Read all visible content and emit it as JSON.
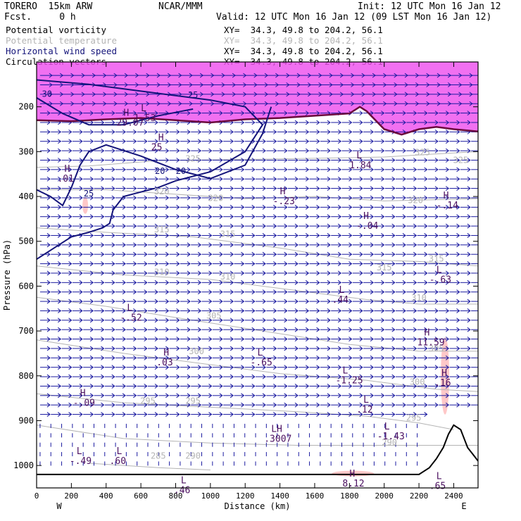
{
  "header": {
    "model": "TORERO  15km ARW",
    "center": "NCAR/MMM",
    "init": "Init: 12 UTC Mon 16 Jan 12",
    "fcst": "Fcst.     0 h",
    "valid": "Valid: 12 UTC Mon 16 Jan 12 (09 LST Mon 16 Jan 12)"
  },
  "fields": [
    {
      "label": "Potential vorticity",
      "xy": "XY=  34.3, 49.8 to 204.2, 56.1",
      "color": "#000000"
    },
    {
      "label": "Potential temperature",
      "xy": "XY=  34.3, 49.8 to 204.2, 56.1",
      "color": "#b4b4b4"
    },
    {
      "label": "Horizontal wind speed",
      "xy": "XY=  34.3, 49.8 to 204.2, 56.1",
      "color": "#14147a"
    },
    {
      "label": "Circulation vectors",
      "xy": "XY=  34.3, 49.8 to 204.2, 56.1",
      "color": "#000000"
    }
  ],
  "chart_data": {
    "type": "cross-section",
    "xlabel": "Distance (km)",
    "ylabel": "Pressure (hPa)",
    "xlim": [
      0,
      2540
    ],
    "ylim": [
      1050,
      100
    ],
    "x_ticks": [
      0,
      200,
      400,
      600,
      800,
      1000,
      1200,
      1400,
      1600,
      1800,
      2000,
      2200,
      2400
    ],
    "y_ticks": [
      200,
      300,
      400,
      500,
      600,
      700,
      800,
      900,
      1000
    ],
    "x_end_labels": {
      "left": "W",
      "right": "E"
    },
    "colors": {
      "pv_fill": "#e600e6",
      "pv_light": "#ffc8c8",
      "theta": "#b4b4b4",
      "wind": "#14147a",
      "vectors": "#1a1aa0",
      "terrain": "#000000"
    },
    "theta_contours": [
      {
        "value": 325,
        "pts": [
          [
            0,
            335
          ],
          [
            300,
            332
          ],
          [
            700,
            320
          ],
          [
            1100,
            318
          ],
          [
            1600,
            315
          ],
          [
            2000,
            312
          ],
          [
            2300,
            305
          ],
          [
            2540,
            300
          ]
        ],
        "labels": [
          [
            900,
            322
          ],
          [
            2220,
            308
          ],
          [
            2440,
            325
          ]
        ]
      },
      {
        "value": 320,
        "pts": [
          [
            0,
            385
          ],
          [
            400,
            385
          ],
          [
            800,
            395
          ],
          [
            1200,
            405
          ],
          [
            1600,
            400
          ],
          [
            2000,
            410
          ],
          [
            2540,
            405
          ]
        ],
        "labels": [
          [
            720,
            395
          ],
          [
            1030,
            410
          ],
          [
            2180,
            415
          ]
        ]
      },
      {
        "value": 315,
        "pts": [
          [
            0,
            470
          ],
          [
            400,
            480
          ],
          [
            900,
            490
          ],
          [
            1400,
            515
          ],
          [
            1800,
            540
          ],
          [
            2200,
            545
          ],
          [
            2540,
            555
          ]
        ],
        "labels": [
          [
            720,
            480
          ],
          [
            1100,
            490
          ],
          [
            2000,
            565
          ],
          [
            2300,
            545
          ]
        ]
      },
      {
        "value": 310,
        "pts": [
          [
            0,
            555
          ],
          [
            500,
            575
          ],
          [
            1000,
            585
          ],
          [
            1500,
            610
          ],
          [
            1900,
            630
          ],
          [
            2200,
            640
          ],
          [
            2540,
            640
          ]
        ],
        "labels": [
          [
            720,
            575
          ],
          [
            1100,
            585
          ],
          [
            2200,
            632
          ]
        ]
      },
      {
        "value": 305,
        "pts": [
          [
            0,
            625
          ],
          [
            400,
            645
          ],
          [
            800,
            670
          ],
          [
            1300,
            700
          ],
          [
            1800,
            730
          ],
          [
            2200,
            745
          ],
          [
            2540,
            745
          ]
        ],
        "labels": [
          [
            1020,
            672
          ],
          [
            2300,
            745
          ]
        ]
      },
      {
        "value": 300,
        "pts": [
          [
            0,
            720
          ],
          [
            500,
            750
          ],
          [
            900,
            770
          ],
          [
            1400,
            795
          ],
          [
            1900,
            810
          ],
          [
            2300,
            830
          ],
          [
            2540,
            835
          ]
        ],
        "labels": [
          [
            920,
            752
          ],
          [
            2190,
            820
          ]
        ]
      },
      {
        "value": 295,
        "pts": [
          [
            0,
            840
          ],
          [
            500,
            860
          ],
          [
            1000,
            870
          ],
          [
            1500,
            880
          ],
          [
            1900,
            890
          ],
          [
            2200,
            905
          ],
          [
            2400,
            920
          ]
        ],
        "labels": [
          [
            640,
            862
          ],
          [
            900,
            862
          ],
          [
            2170,
            900
          ]
        ]
      },
      {
        "value": 290,
        "pts": [
          [
            0,
            910
          ],
          [
            500,
            940
          ],
          [
            1000,
            950
          ],
          [
            1500,
            955
          ],
          [
            1900,
            955
          ],
          [
            2200,
            955
          ],
          [
            2540,
            955
          ]
        ],
        "labels": [
          [
            900,
            985
          ],
          [
            2030,
            955
          ]
        ]
      },
      {
        "value": 285,
        "pts": [
          [
            300,
            995
          ],
          [
            700,
            1005
          ],
          [
            1000,
            1010
          ]
        ],
        "labels": [
          [
            700,
            985
          ]
        ]
      }
    ],
    "wind_contours": [
      {
        "value": 25,
        "pts": [
          [
            0,
            140
          ],
          [
            300,
            150
          ],
          [
            700,
            170
          ],
          [
            1000,
            185
          ],
          [
            1200,
            200
          ],
          [
            1300,
            240
          ],
          [
            1200,
            300
          ],
          [
            1000,
            345
          ],
          [
            800,
            365
          ],
          [
            700,
            380
          ],
          [
            600,
            390
          ],
          [
            500,
            400
          ],
          [
            440,
            430
          ],
          [
            420,
            460
          ],
          [
            380,
            470
          ],
          [
            300,
            480
          ],
          [
            200,
            490
          ],
          [
            100,
            515
          ],
          [
            0,
            540
          ]
        ],
        "labels": [
          [
            300,
            400
          ],
          [
            900,
            180
          ]
        ]
      },
      {
        "value": 20,
        "pts": [
          [
            0,
            385
          ],
          [
            80,
            400
          ],
          [
            150,
            420
          ],
          [
            200,
            380
          ],
          [
            250,
            330
          ],
          [
            300,
            300
          ],
          [
            400,
            285
          ],
          [
            600,
            310
          ],
          [
            800,
            340
          ],
          [
            1000,
            360
          ],
          [
            1200,
            330
          ],
          [
            1300,
            260
          ],
          [
            1350,
            200
          ]
        ],
        "labels": [
          [
            710,
            350
          ],
          [
            830,
            350
          ]
        ]
      },
      {
        "value": 30,
        "pts": [
          [
            0,
            180
          ],
          [
            150,
            215
          ],
          [
            300,
            240
          ],
          [
            500,
            240
          ],
          [
            700,
            220
          ],
          [
            900,
            205
          ]
        ],
        "labels": [
          [
            60,
            178
          ]
        ]
      }
    ],
    "pv_region": {
      "from_pressure": 100,
      "tropopause": [
        [
          0,
          230
        ],
        [
          200,
          232
        ],
        [
          400,
          228
        ],
        [
          600,
          225
        ],
        [
          800,
          230
        ],
        [
          1000,
          235
        ],
        [
          1200,
          228
        ],
        [
          1400,
          225
        ],
        [
          1600,
          220
        ],
        [
          1800,
          215
        ],
        [
          1860,
          200
        ],
        [
          1900,
          210
        ],
        [
          2000,
          250
        ],
        [
          2100,
          262
        ],
        [
          2200,
          250
        ],
        [
          2300,
          245
        ],
        [
          2400,
          250
        ],
        [
          2540,
          255
        ]
      ]
    },
    "high_low_labels": [
      {
        "letter": "H",
        "value": ".01",
        "x": 160,
        "y": 345
      },
      {
        "letter": "H",
        "value": "29.07",
        "x": 500,
        "y": 220
      },
      {
        "letter": "L",
        "value": "1.53",
        "x": 600,
        "y": 210
      },
      {
        "letter": "H",
        "value": "25",
        "x": 700,
        "y": 275
      },
      {
        "letter": "H",
        "value": "-.23",
        "x": 1400,
        "y": 395
      },
      {
        "letter": "L",
        "value": "1.84",
        "x": 1840,
        "y": 315
      },
      {
        "letter": "H",
        "value": "-.04",
        "x": 1880,
        "y": 450
      },
      {
        "letter": "H",
        "value": "-.14",
        "x": 2340,
        "y": 405
      },
      {
        "letter": "L",
        "value": "-.63",
        "x": 2300,
        "y": 570
      },
      {
        "letter": "L",
        "value": ".44",
        "x": 1740,
        "y": 615
      },
      {
        "letter": "L",
        "value": "-.52",
        "x": 520,
        "y": 655
      },
      {
        "letter": "H",
        "value": ".03",
        "x": 730,
        "y": 755
      },
      {
        "letter": "L",
        "value": "-.65",
        "x": 1270,
        "y": 755
      },
      {
        "letter": "H",
        "value": "11.59",
        "x": 2230,
        "y": 710
      },
      {
        "letter": "H",
        "value": ".16",
        "x": 2330,
        "y": 800
      },
      {
        "letter": "L",
        "value": "-1.25",
        "x": 1760,
        "y": 795
      },
      {
        "letter": "H",
        "value": "-.09",
        "x": 250,
        "y": 845
      },
      {
        "letter": "L",
        "value": ".12",
        "x": 1880,
        "y": 860
      },
      {
        "letter": "LH",
        "value": ".3007",
        "x": 1350,
        "y": 925
      },
      {
        "letter": "L",
        "value": "-1.43",
        "x": 2000,
        "y": 920
      },
      {
        "letter": "L",
        "value": "-.49",
        "x": 230,
        "y": 975
      },
      {
        "letter": "L",
        "value": ".60",
        "x": 460,
        "y": 975
      },
      {
        "letter": "L",
        "value": ".46",
        "x": 830,
        "y": 1040
      },
      {
        "letter": "H",
        "value": "8.12",
        "x": 1800,
        "y": 1025
      },
      {
        "letter": "L",
        "value": ".65",
        "x": 2300,
        "y": 1030
      }
    ],
    "terrain": [
      [
        0,
        1020
      ],
      [
        1200,
        1020
      ],
      [
        2200,
        1020
      ],
      [
        2260,
        1005
      ],
      [
        2300,
        985
      ],
      [
        2340,
        960
      ],
      [
        2370,
        930
      ],
      [
        2400,
        910
      ],
      [
        2440,
        920
      ],
      [
        2480,
        960
      ],
      [
        2520,
        980
      ],
      [
        2540,
        990
      ]
    ]
  }
}
